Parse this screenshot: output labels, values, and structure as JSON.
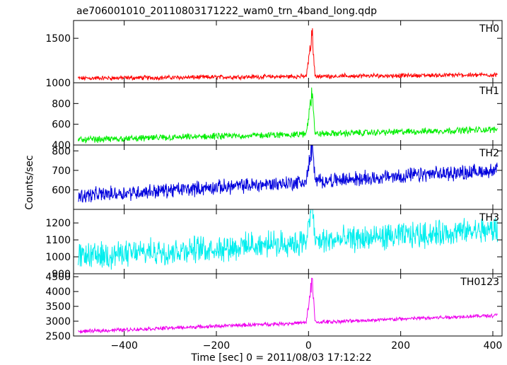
{
  "chart": {
    "title": "ae706001010_20110803171222_wam0_trn_4band_long.qdp",
    "ylabel": "Counts/sec",
    "xlabel": "Time [sec] 0 = 2011/08/03 17:12:22",
    "x_ticks": [
      -400,
      -200,
      0,
      200,
      400
    ]
  },
  "chart_data": [
    {
      "type": "line",
      "series": [
        {
          "name": "TH0",
          "color": "#ff0000",
          "baseline": [
            1050,
            1090
          ],
          "noise": 20,
          "peak": 1650
        }
      ],
      "xlim": [
        -510,
        420
      ],
      "ylim": [
        1000,
        1700
      ],
      "y_ticks": [
        1000,
        1500
      ],
      "y_tick_labels": [
        "1000",
        "1500"
      ]
    },
    {
      "type": "line",
      "series": [
        {
          "name": "TH1",
          "color": "#00ee00",
          "baseline": [
            450,
            550
          ],
          "noise": 25,
          "peak": 980
        }
      ],
      "xlim": [
        -510,
        420
      ],
      "ylim": [
        400,
        1000
      ],
      "y_ticks": [
        400,
        600,
        800
      ],
      "y_tick_labels": [
        "400",
        "600",
        "800"
      ]
    },
    {
      "type": "line",
      "series": [
        {
          "name": "TH2",
          "color": "#0000dd",
          "baseline": [
            570,
            700
          ],
          "noise": 30,
          "peak": 820
        }
      ],
      "xlim": [
        -510,
        420
      ],
      "ylim": [
        500,
        830
      ],
      "y_ticks": [
        600,
        700,
        800
      ],
      "y_tick_labels": [
        "600",
        "700",
        "800"
      ]
    },
    {
      "type": "line",
      "series": [
        {
          "name": "TH3",
          "color": "#00eeee",
          "baseline": [
            1000,
            1160
          ],
          "noise": 60,
          "peak": 1280
        }
      ],
      "xlim": [
        -510,
        420
      ],
      "ylim": [
        900,
        1280
      ],
      "y_ticks": [
        900,
        1000,
        1100,
        1200
      ],
      "y_tick_labels": [
        "900",
        "1000",
        "1100",
        "1200"
      ]
    },
    {
      "type": "line",
      "series": [
        {
          "name": "TH0123",
          "color": "#ee00ee",
          "baseline": [
            2650,
            3200
          ],
          "noise": 50,
          "peak": 4500
        }
      ],
      "xlim": [
        -510,
        420
      ],
      "ylim": [
        2500,
        4600
      ],
      "y_ticks": [
        2500,
        3000,
        3500,
        4000,
        4500
      ],
      "y_tick_labels": [
        "2500",
        "3000",
        "3500",
        "4000",
        "4500"
      ]
    }
  ]
}
